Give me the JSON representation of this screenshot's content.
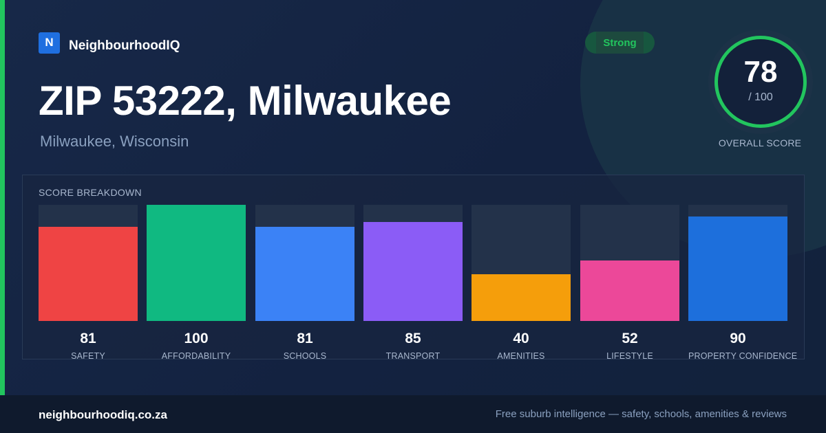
{
  "brand": {
    "logo_letter": "N",
    "name": "NeighbourhoodIQ"
  },
  "badge": {
    "label": "Strong"
  },
  "header": {
    "title": "ZIP 53222, Milwaukee",
    "subtitle": "Milwaukee, Wisconsin"
  },
  "overall": {
    "score": "78",
    "max": "/ 100",
    "caption": "OVERALL SCORE",
    "fraction": 0.78
  },
  "breakdown": {
    "title": "SCORE BREAKDOWN"
  },
  "chart_data": {
    "type": "bar",
    "categories": [
      "SAFETY",
      "AFFORDABILITY",
      "SCHOOLS",
      "TRANSPORT",
      "AMENITIES",
      "LIFESTYLE",
      "PROPERTY CONFIDENCE"
    ],
    "values": [
      81,
      100,
      81,
      85,
      40,
      52,
      90
    ],
    "ylim": [
      0,
      100
    ],
    "colors": [
      "#ef4444",
      "#10b981",
      "#3b82f6",
      "#8b5cf6",
      "#f59e0b",
      "#ec4899",
      "#1d6fdc"
    ]
  },
  "footer": {
    "domain": "neighbourhoodiq.co.za",
    "tagline": "Free suburb intelligence — safety, schools, amenities & reviews"
  },
  "colors": {
    "accent": "#22c55e",
    "background": "#13203a"
  }
}
